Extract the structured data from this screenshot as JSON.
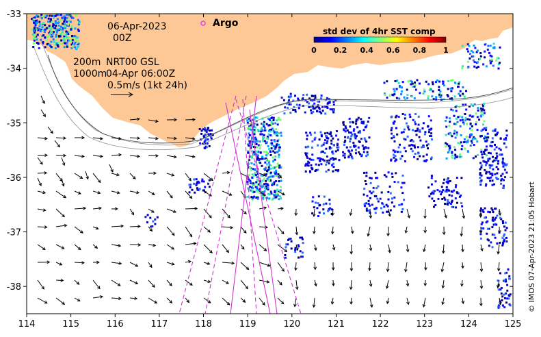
{
  "map": {
    "lon_ticks": [
      "114",
      "115",
      "116",
      "117",
      "118",
      "119",
      "120",
      "121",
      "122",
      "123",
      "124",
      "125"
    ],
    "lat_ticks": [
      "-33",
      "-34",
      "-35",
      "-36",
      "-37",
      "-38"
    ],
    "lon_range": [
      114,
      125
    ],
    "lat_range": [
      -38.5,
      -33
    ],
    "land_color": "#fdc896",
    "sea_color": "#ffffff",
    "frame_color": "#000000"
  },
  "annotations": {
    "date": "06-Apr-2023",
    "hour": "00Z",
    "isobath_shallow": "200m",
    "isobath_deep": "1000m",
    "model_label": "NRT00 GSL",
    "model_time": "04-Apr 06:00Z",
    "scale_arrow_label": "0.5m/s (1kt 24h)"
  },
  "legend": {
    "argo_label": "Argo",
    "argo_color": "#e040e0"
  },
  "colorbar": {
    "title": "std dev of 4hr SST comp",
    "ticks": [
      "0",
      "0.2",
      "0.4",
      "0.6",
      "0.8",
      "1"
    ],
    "colors": [
      "#00008f",
      "#0000ff",
      "#0080ff",
      "#00ffff",
      "#80ff80",
      "#ffff00",
      "#ff8000",
      "#ff0000",
      "#800000"
    ]
  },
  "credit": "© IMOS 07-Apr-2023 21:05 Hobart",
  "track_color": "#cc33cc"
}
